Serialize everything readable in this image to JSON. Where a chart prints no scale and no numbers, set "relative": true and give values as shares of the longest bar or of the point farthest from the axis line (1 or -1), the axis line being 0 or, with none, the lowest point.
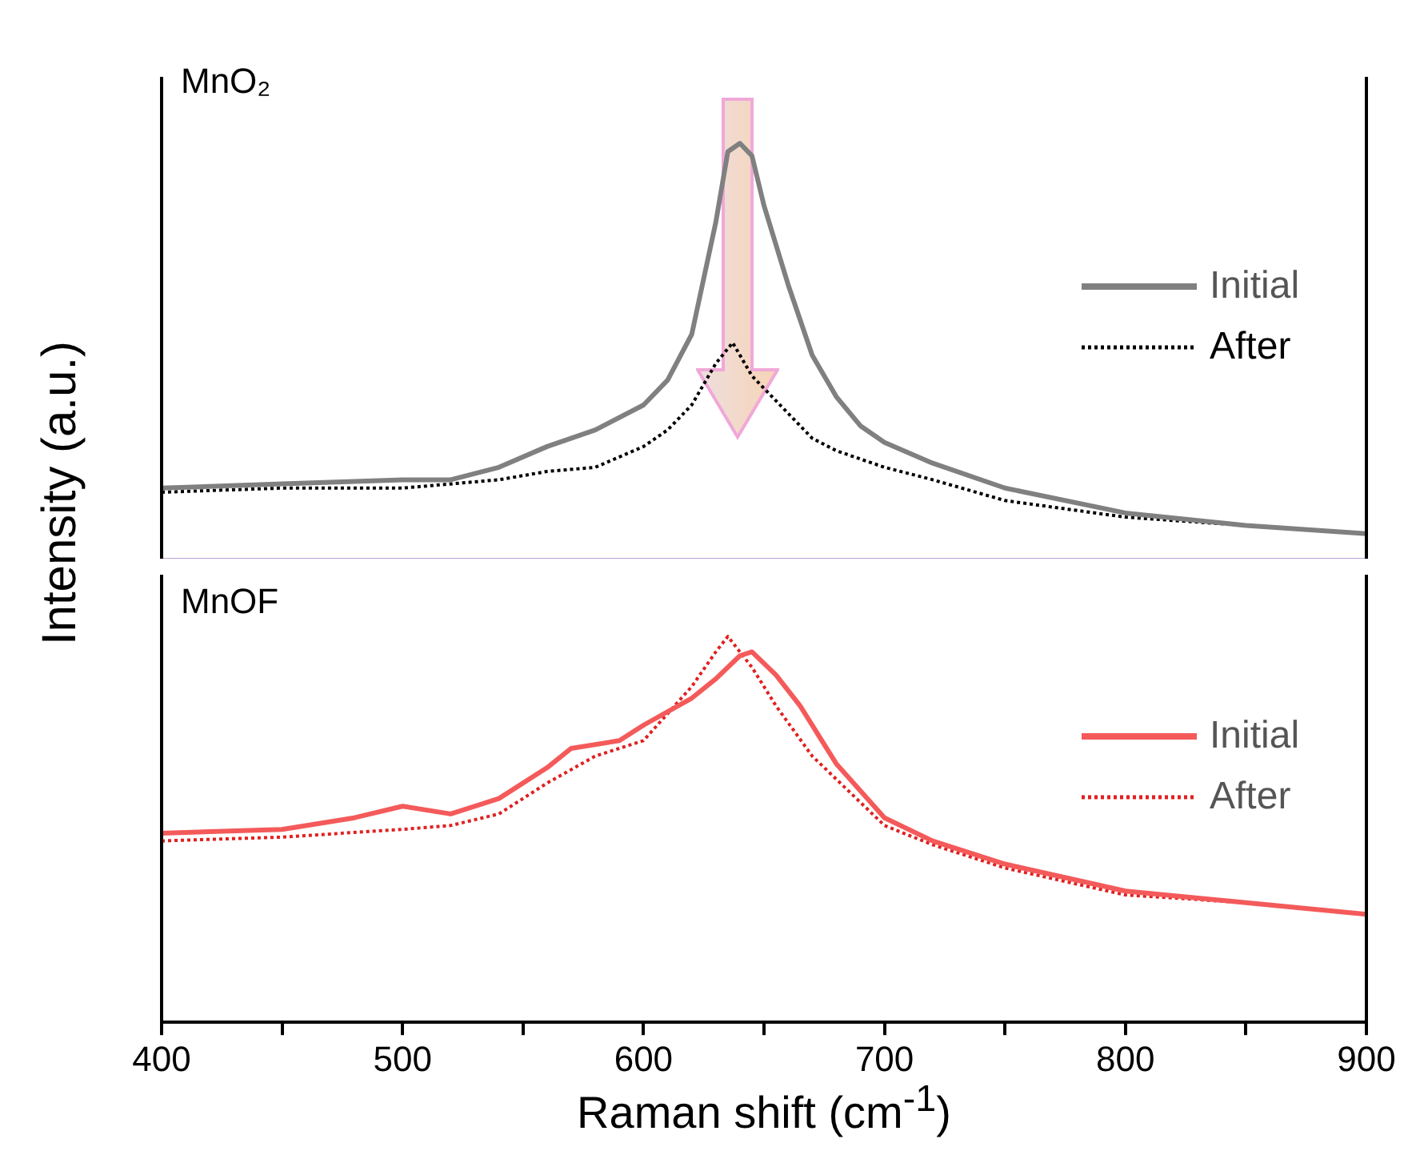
{
  "chart_data": [
    {
      "type": "line",
      "title": "MnO₂",
      "ylabel": "Intensity (a.u.)",
      "relative": true,
      "xlim": [
        400,
        900
      ],
      "tick_labels": false,
      "legend": "right",
      "series": [
        {
          "name": "Initial",
          "color": "#808080",
          "line_style": "solid",
          "x": [
            400,
            450,
            500,
            520,
            540,
            560,
            580,
            600,
            610,
            620,
            630,
            635,
            640,
            645,
            650,
            660,
            670,
            680,
            690,
            700,
            720,
            750,
            800,
            850,
            900
          ],
          "values": [
            0.17,
            0.18,
            0.19,
            0.19,
            0.22,
            0.27,
            0.31,
            0.37,
            0.43,
            0.54,
            0.81,
            0.98,
            1.0,
            0.97,
            0.85,
            0.66,
            0.49,
            0.39,
            0.32,
            0.28,
            0.23,
            0.17,
            0.11,
            0.08,
            0.06
          ]
        },
        {
          "name": "After",
          "color": "#000000",
          "line_style": "dotted",
          "x": [
            400,
            450,
            500,
            540,
            560,
            580,
            600,
            610,
            620,
            630,
            637,
            645,
            650,
            660,
            670,
            680,
            700,
            720,
            750,
            800,
            850,
            900
          ],
          "values": [
            0.16,
            0.17,
            0.17,
            0.19,
            0.21,
            0.22,
            0.27,
            0.31,
            0.37,
            0.47,
            0.52,
            0.44,
            0.41,
            0.35,
            0.29,
            0.26,
            0.22,
            0.19,
            0.14,
            0.1,
            0.08,
            0.06
          ]
        }
      ]
    },
    {
      "type": "line",
      "title": "MnOF",
      "xlabel": "Raman shift (cm$^{-1}$)",
      "relative": true,
      "xlim": [
        400,
        900
      ],
      "xticks": [
        400,
        {
          "value": 450,
          "label": null
        },
        500,
        {
          "value": 550,
          "label": null
        },
        600,
        {
          "value": 650,
          "label": null
        },
        700,
        {
          "value": 750,
          "label": null
        },
        800,
        {
          "value": 850,
          "label": null
        },
        900
      ],
      "tick_labels": "x",
      "legend": "right",
      "series": [
        {
          "name": "Initial",
          "color": "#f45a5a",
          "line_style": "solid",
          "x": [
            400,
            450,
            480,
            500,
            520,
            540,
            560,
            570,
            590,
            600,
            620,
            630,
            640,
            645,
            655,
            665,
            680,
            700,
            720,
            750,
            800,
            850,
            900
          ],
          "values": [
            0.49,
            0.5,
            0.53,
            0.56,
            0.54,
            0.58,
            0.66,
            0.71,
            0.73,
            0.77,
            0.84,
            0.89,
            0.95,
            0.96,
            0.9,
            0.82,
            0.67,
            0.53,
            0.47,
            0.41,
            0.34,
            0.31,
            0.28
          ]
        },
        {
          "name": "After",
          "color": "#e02020",
          "line_style": "dotted",
          "x": [
            400,
            450,
            500,
            520,
            540,
            560,
            580,
            600,
            620,
            630,
            635,
            645,
            655,
            670,
            690,
            700,
            720,
            750,
            800,
            850,
            900
          ],
          "values": [
            0.47,
            0.48,
            0.5,
            0.51,
            0.54,
            0.62,
            0.69,
            0.73,
            0.87,
            0.96,
            1.0,
            0.92,
            0.82,
            0.69,
            0.57,
            0.51,
            0.46,
            0.4,
            0.33,
            0.31,
            0.28
          ]
        }
      ]
    }
  ]
}
